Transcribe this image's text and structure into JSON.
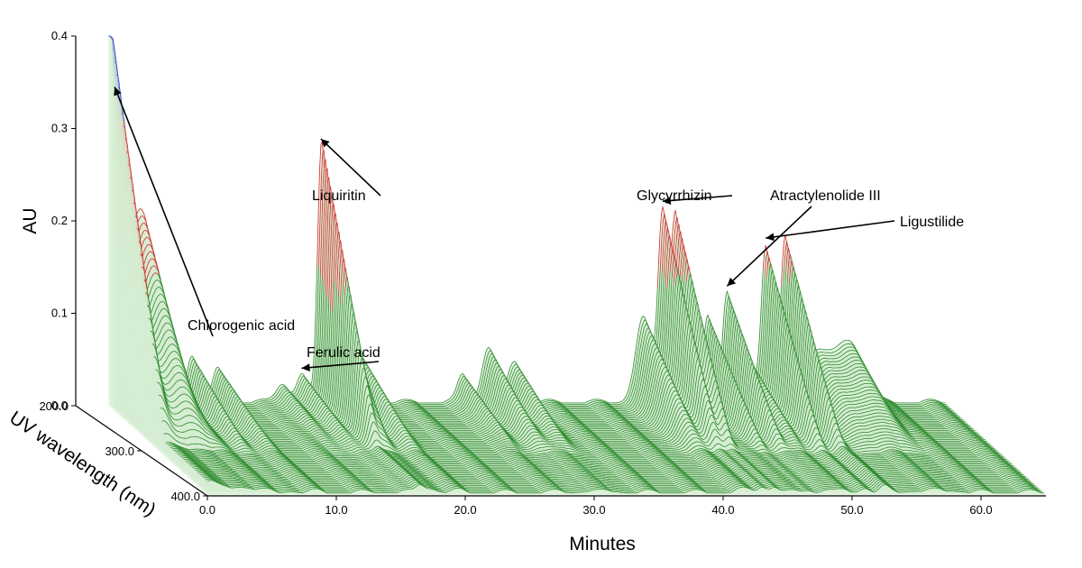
{
  "chart_data": {
    "type": "3d-waterfall",
    "xlabel": "Minutes",
    "ylabel": "AU",
    "zlabel": "UV wavelength (nm)",
    "x_range": [
      0,
      65
    ],
    "x_ticks": [
      "0.0",
      "10.0",
      "20.0",
      "30.0",
      "40.0",
      "50.0",
      "60.0"
    ],
    "y_range": [
      0,
      0.4
    ],
    "y_ticks": [
      "0.0",
      "0.1",
      "0.2",
      "0.3",
      "0.4"
    ],
    "z_range": [
      200,
      400
    ],
    "z_ticks": [
      "200.0",
      "300.0",
      "400.0"
    ],
    "colors": {
      "low": "#2e8b2e",
      "mid": "#d22b2b",
      "high": "#2b3fd2",
      "fill": "#d6ecd2"
    },
    "color_thresholds": [
      0.155,
      0.31
    ],
    "peaks": [
      {
        "rt": 0.0,
        "height": 0.4,
        "width": 0.6
      },
      {
        "rt": 2.5,
        "height": 0.21,
        "width": 1.2
      },
      {
        "rt": 6.5,
        "height": 0.05,
        "width": 0.4
      },
      {
        "rt": 8.5,
        "height": 0.035,
        "width": 0.4
      },
      {
        "rt": 13.5,
        "height": 0.02,
        "width": 0.5
      },
      {
        "rt": 15.0,
        "height": 0.03,
        "width": 0.4
      },
      {
        "rt": 16.5,
        "height": 0.21,
        "width": 0.28
      },
      {
        "rt": 17.2,
        "height": 0.155,
        "width": 0.55
      },
      {
        "rt": 19.5,
        "height": 0.05,
        "width": 0.5
      },
      {
        "rt": 27.5,
        "height": 0.03,
        "width": 0.4
      },
      {
        "rt": 29.5,
        "height": 0.06,
        "width": 0.5
      },
      {
        "rt": 31.5,
        "height": 0.045,
        "width": 0.5
      },
      {
        "rt": 41.5,
        "height": 0.09,
        "width": 0.6
      },
      {
        "rt": 43.0,
        "height": 0.205,
        "width": 0.35
      },
      {
        "rt": 44.0,
        "height": 0.205,
        "width": 0.35
      },
      {
        "rt": 46.5,
        "height": 0.095,
        "width": 0.35
      },
      {
        "rt": 48.0,
        "height": 0.12,
        "width": 0.35
      },
      {
        "rt": 49.5,
        "height": 0.05,
        "width": 0.5
      },
      {
        "rt": 51.0,
        "height": 0.17,
        "width": 0.35
      },
      {
        "rt": 52.5,
        "height": 0.175,
        "width": 0.35
      },
      {
        "rt": 55.0,
        "height": 0.055,
        "width": 1.0
      },
      {
        "rt": 57.5,
        "height": 0.065,
        "width": 1.0
      }
    ],
    "annotations": [
      {
        "label": "Chlorogenic acid",
        "rt": 0.5
      },
      {
        "label": "Ferulic acid",
        "rt": 15.0
      },
      {
        "label": "Liquiritin",
        "rt": 16.5
      },
      {
        "label": "Glycyrrhizin",
        "rt": 43.0
      },
      {
        "label": "Atractylenolide III",
        "rt": 48.0
      },
      {
        "label": "Ligustilide",
        "rt": 51.0
      }
    ]
  }
}
